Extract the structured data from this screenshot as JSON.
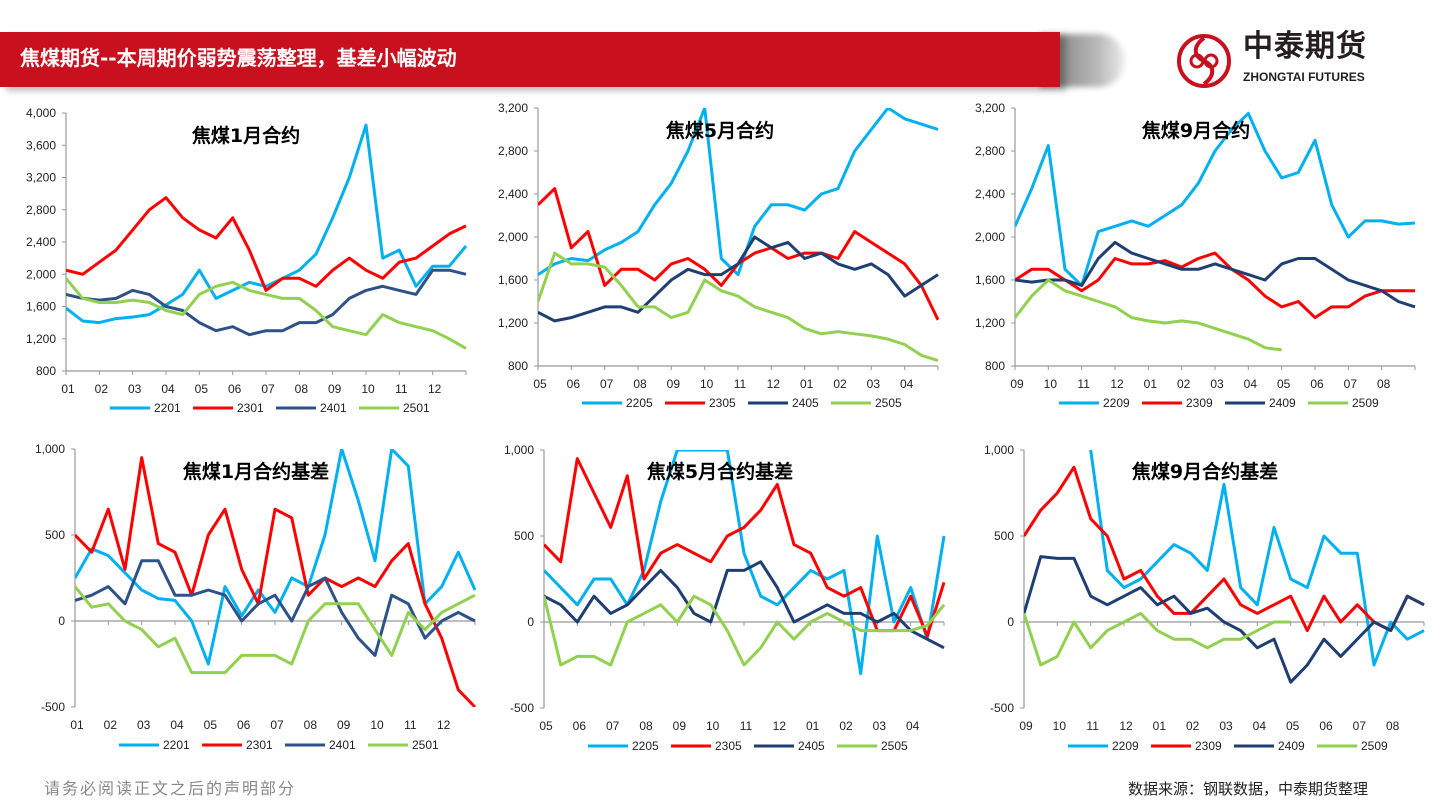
{
  "header": {
    "title": "焦煤期货--本周期价弱势震荡整理，基差小幅波动",
    "logo_cn": "中泰期货",
    "logo_en": "ZHONGTAI FUTURES",
    "brand_color": "#c8101e"
  },
  "footer": {
    "disclaimer": "请务必阅读正文之后的声明部分",
    "source": "数据来源：钢联数据，中泰期货整理"
  },
  "chart_data": [
    {
      "type": "line",
      "title": "焦煤1月合约",
      "x_ticks": [
        "01",
        "02",
        "03",
        "04",
        "05",
        "06",
        "07",
        "08",
        "09",
        "10",
        "11",
        "12"
      ],
      "ylim": [
        800,
        4000
      ],
      "y_ticks": [
        "800",
        "1,200",
        "1,600",
        "2,000",
        "2,400",
        "2,800",
        "3,200",
        "3,600",
        "4,000"
      ],
      "y_tick_values": [
        800,
        1200,
        1600,
        2000,
        2400,
        2800,
        3200,
        3600,
        4000
      ],
      "x_points": "semi-monthly",
      "series": [
        {
          "name": "2201",
          "color": "#00b0f0",
          "values": [
            1580,
            1420,
            1400,
            1450,
            1470,
            1500,
            1620,
            1750,
            2050,
            1700,
            1800,
            1900,
            1850,
            1950,
            2050,
            2250,
            2700,
            3200,
            3850,
            2200,
            2300,
            1850,
            2100,
            2100,
            2350
          ]
        },
        {
          "name": "2301",
          "color": "#ff0000",
          "values": [
            2050,
            2000,
            2150,
            2300,
            2550,
            2800,
            2950,
            2700,
            2550,
            2450,
            2700,
            2300,
            1800,
            1950,
            1950,
            1850,
            2050,
            2200,
            2050,
            1950,
            2150,
            2200,
            2350,
            2500,
            2600
          ]
        },
        {
          "name": "2401",
          "color": "#2e5288",
          "values": [
            1750,
            1700,
            1680,
            1700,
            1800,
            1750,
            1600,
            1550,
            1400,
            1300,
            1350,
            1250,
            1300,
            1300,
            1400,
            1400,
            1500,
            1700,
            1800,
            1850,
            1800,
            1750,
            2050,
            2050,
            2000
          ]
        },
        {
          "name": "2501",
          "color": "#92d050",
          "values": [
            1950,
            1700,
            1650,
            1650,
            1680,
            1650,
            1550,
            1500,
            1750,
            1850,
            1900,
            1800,
            1750,
            1700,
            1700,
            1550,
            1350,
            1300,
            1250,
            1500,
            1400,
            1350,
            1300,
            1200,
            1080
          ]
        }
      ]
    },
    {
      "type": "line",
      "title": "焦煤5月合约",
      "x_ticks": [
        "05",
        "06",
        "07",
        "08",
        "09",
        "10",
        "11",
        "12",
        "01",
        "02",
        "03",
        "04"
      ],
      "ylim": [
        800,
        3200
      ],
      "y_ticks": [
        "800",
        "1,200",
        "1,600",
        "2,000",
        "2,400",
        "2,800",
        "3,200"
      ],
      "y_tick_values": [
        800,
        1200,
        1600,
        2000,
        2400,
        2800,
        3200
      ],
      "x_points": "semi-monthly",
      "series": [
        {
          "name": "2205",
          "color": "#00b0f0",
          "values": [
            1650,
            1750,
            1800,
            1780,
            1880,
            1950,
            2050,
            2300,
            2500,
            2800,
            3200,
            1800,
            1650,
            2100,
            2300,
            2300,
            2250,
            2400,
            2450,
            2800,
            3000,
            3200,
            3100,
            3050,
            3000
          ]
        },
        {
          "name": "2305",
          "color": "#ff0000",
          "values": [
            2300,
            2450,
            1900,
            2050,
            1550,
            1700,
            1700,
            1600,
            1750,
            1800,
            1700,
            1550,
            1750,
            1850,
            1900,
            1800,
            1850,
            1850,
            1800,
            2050,
            1950,
            1850,
            1750,
            1550,
            1230
          ]
        },
        {
          "name": "2405",
          "color": "#1f3f73",
          "values": [
            1300,
            1220,
            1250,
            1300,
            1350,
            1350,
            1300,
            1450,
            1600,
            1700,
            1650,
            1650,
            1750,
            2000,
            1900,
            1950,
            1800,
            1850,
            1750,
            1700,
            1750,
            1650,
            1450,
            1550,
            1650
          ]
        },
        {
          "name": "2505",
          "color": "#92d050",
          "values": [
            1400,
            1850,
            1750,
            1750,
            1720,
            1550,
            1350,
            1350,
            1250,
            1300,
            1600,
            1500,
            1450,
            1350,
            1300,
            1250,
            1150,
            1100,
            1120,
            1100,
            1080,
            1050,
            1000,
            900,
            850
          ]
        }
      ]
    },
    {
      "type": "line",
      "title": "焦煤9月合约",
      "x_ticks": [
        "09",
        "10",
        "11",
        "12",
        "01",
        "02",
        "03",
        "04",
        "05",
        "06",
        "07",
        "08"
      ],
      "ylim": [
        800,
        3200
      ],
      "y_ticks": [
        "800",
        "1,200",
        "1,600",
        "2,000",
        "2,400",
        "2,800",
        "3,200"
      ],
      "y_tick_values": [
        800,
        1200,
        1600,
        2000,
        2400,
        2800,
        3200
      ],
      "x_points": "semi-monthly",
      "series": [
        {
          "name": "2209",
          "color": "#00b0f0",
          "values": [
            2100,
            2450,
            2850,
            1700,
            1550,
            2050,
            2100,
            2150,
            2100,
            2200,
            2300,
            2500,
            2800,
            3000,
            3150,
            2800,
            2550,
            2600,
            2900,
            2300,
            2000,
            2150,
            2150,
            2120,
            2130
          ]
        },
        {
          "name": "2309",
          "color": "#ff0000",
          "values": [
            1600,
            1700,
            1700,
            1600,
            1500,
            1600,
            1800,
            1750,
            1750,
            1780,
            1720,
            1800,
            1850,
            1700,
            1600,
            1450,
            1350,
            1400,
            1250,
            1350,
            1350,
            1450,
            1500,
            1500,
            1500
          ]
        },
        {
          "name": "2409",
          "color": "#1f3f73",
          "values": [
            1600,
            1580,
            1600,
            1600,
            1550,
            1800,
            1950,
            1850,
            1800,
            1750,
            1700,
            1700,
            1750,
            1700,
            1650,
            1600,
            1750,
            1800,
            1800,
            1700,
            1600,
            1550,
            1500,
            1400,
            1350
          ]
        },
        {
          "name": "2509",
          "color": "#92d050",
          "values": [
            1250,
            1450,
            1600,
            1500,
            1450,
            1400,
            1350,
            1250,
            1220,
            1200,
            1220,
            1200,
            1150,
            1100,
            1050,
            970,
            950,
            null,
            null,
            null,
            null,
            null,
            null,
            null,
            null
          ]
        }
      ]
    },
    {
      "type": "line",
      "title": "焦煤1月合约基差",
      "x_ticks": [
        "01",
        "02",
        "03",
        "04",
        "05",
        "06",
        "07",
        "08",
        "09",
        "10",
        "11",
        "12"
      ],
      "ylim": [
        -500,
        1000
      ],
      "y_ticks": [
        "-500",
        "0",
        "500",
        "1,000"
      ],
      "y_tick_values": [
        -500,
        0,
        500,
        1000
      ],
      "x_points": "semi-monthly",
      "series": [
        {
          "name": "2201",
          "color": "#00b0f0",
          "values": [
            250,
            420,
            380,
            280,
            180,
            130,
            120,
            0,
            -250,
            200,
            30,
            180,
            50,
            250,
            200,
            500,
            1000,
            700,
            350,
            1000,
            900,
            100,
            200,
            400,
            180
          ]
        },
        {
          "name": "2301",
          "color": "#ff0000",
          "values": [
            500,
            400,
            650,
            300,
            950,
            450,
            400,
            150,
            500,
            650,
            300,
            100,
            650,
            600,
            150,
            250,
            200,
            250,
            200,
            350,
            450,
            100,
            -100,
            -400,
            -500
          ]
        },
        {
          "name": "2401",
          "color": "#2e5288",
          "values": [
            120,
            150,
            200,
            100,
            350,
            350,
            150,
            150,
            180,
            150,
            0,
            100,
            150,
            0,
            200,
            250,
            50,
            -100,
            -200,
            150,
            100,
            -100,
            0,
            50,
            0
          ]
        },
        {
          "name": "2501",
          "color": "#92d050",
          "values": [
            200,
            80,
            100,
            0,
            -50,
            -150,
            -100,
            -300,
            -300,
            -300,
            -200,
            -200,
            -200,
            -250,
            0,
            100,
            100,
            100,
            -50,
            -200,
            50,
            -50,
            50,
            100,
            150
          ]
        }
      ]
    },
    {
      "type": "line",
      "title": "焦煤5月合约基差",
      "x_ticks": [
        "05",
        "06",
        "07",
        "08",
        "09",
        "10",
        "11",
        "12",
        "01",
        "02",
        "03",
        "04"
      ],
      "ylim": [
        -500,
        1000
      ],
      "y_ticks": [
        "-500",
        "0",
        "500",
        "1,000"
      ],
      "y_tick_values": [
        -500,
        0,
        500,
        1000
      ],
      "x_points": "semi-monthly",
      "series": [
        {
          "name": "2205",
          "color": "#00b0f0",
          "values": [
            300,
            200,
            100,
            250,
            250,
            100,
            300,
            700,
            1000,
            1000,
            1000,
            1000,
            400,
            150,
            100,
            200,
            300,
            250,
            300,
            -300,
            500,
            0,
            200,
            -100,
            500
          ]
        },
        {
          "name": "2305",
          "color": "#ff0000",
          "values": [
            450,
            350,
            950,
            750,
            550,
            850,
            250,
            400,
            450,
            400,
            350,
            500,
            550,
            650,
            800,
            450,
            400,
            200,
            150,
            200,
            -50,
            -50,
            150,
            -80,
            230
          ]
        },
        {
          "name": "2405",
          "color": "#1f3f73",
          "values": [
            150,
            100,
            0,
            150,
            50,
            100,
            200,
            300,
            200,
            50,
            0,
            300,
            300,
            350,
            200,
            0,
            50,
            100,
            50,
            50,
            0,
            50,
            -50,
            -100,
            -150
          ]
        },
        {
          "name": "2505",
          "color": "#92d050",
          "values": [
            150,
            -250,
            -200,
            -200,
            -250,
            0,
            50,
            100,
            0,
            150,
            100,
            -50,
            -250,
            -150,
            0,
            -100,
            0,
            50,
            0,
            -50,
            -50,
            -50,
            -50,
            -20,
            100
          ]
        }
      ]
    },
    {
      "type": "line",
      "title": "焦煤9月合约基差",
      "x_ticks": [
        "09",
        "10",
        "11",
        "12",
        "01",
        "02",
        "03",
        "04",
        "05",
        "06",
        "07",
        "08"
      ],
      "ylim": [
        -500,
        1000
      ],
      "y_ticks": [
        "-500",
        "0",
        "500",
        "1,000"
      ],
      "y_tick_values": [
        -500,
        0,
        500,
        1000
      ],
      "x_points": "semi-monthly",
      "series": [
        {
          "name": "2209",
          "color": "#00b0f0",
          "values": [
            null,
            null,
            null,
            null,
            1000,
            300,
            200,
            250,
            350,
            450,
            400,
            300,
            800,
            200,
            100,
            550,
            250,
            200,
            500,
            400,
            400,
            -250,
            0,
            -100,
            -50
          ]
        },
        {
          "name": "2309",
          "color": "#ff0000",
          "values": [
            500,
            650,
            750,
            900,
            600,
            500,
            250,
            300,
            150,
            50,
            50,
            150,
            250,
            100,
            50,
            100,
            150,
            -50,
            150,
            0,
            100,
            0,
            -50,
            150,
            100
          ]
        },
        {
          "name": "2409",
          "color": "#1f3f73",
          "values": [
            50,
            380,
            370,
            370,
            150,
            100,
            150,
            200,
            100,
            150,
            50,
            80,
            0,
            -50,
            -150,
            -100,
            -350,
            -250,
            -100,
            -200,
            -100,
            0,
            -50,
            150,
            100
          ]
        },
        {
          "name": "2509",
          "color": "#92d050",
          "values": [
            50,
            -250,
            -200,
            0,
            -150,
            -50,
            0,
            50,
            -50,
            -100,
            -100,
            -150,
            -100,
            -100,
            -50,
            0,
            0,
            null,
            null,
            null,
            null,
            null,
            null,
            null,
            null
          ]
        }
      ]
    }
  ]
}
